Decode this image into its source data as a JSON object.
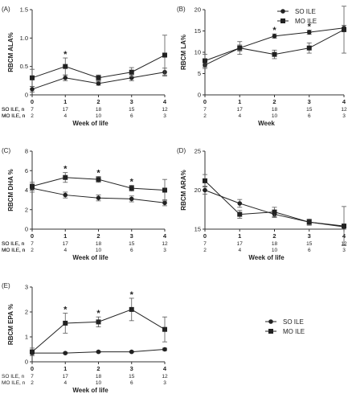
{
  "legend": [
    {
      "label": "SO ILE",
      "marker": "circle"
    },
    {
      "label": "MO ILE",
      "marker": "square"
    }
  ],
  "n_rows": {
    "so_label": "SO ILE, n",
    "mo_label": "MO ILE, n",
    "so": [
      "7",
      "17",
      "18",
      "15",
      "12"
    ],
    "mo": [
      "2",
      "4",
      "10",
      "6",
      "3"
    ]
  },
  "chart_data": [
    {
      "type": "line",
      "panel": "(A)",
      "ylabel": "RBCM ALA%",
      "xlabel": "Week of life",
      "x": [
        0,
        1,
        2,
        3,
        4
      ],
      "xticks": [
        "0",
        "1",
        "2",
        "3",
        "4"
      ],
      "ylim": [
        0,
        1.5
      ],
      "yticks": [
        "0",
        "0.5",
        "1.0",
        "1.5"
      ],
      "series": [
        {
          "name": "SO ILE",
          "marker": "circle",
          "values": [
            0.1,
            0.3,
            0.2,
            0.3,
            0.4
          ],
          "err": [
            0.05,
            0.05,
            0.03,
            0.05,
            0.07
          ]
        },
        {
          "name": "MO ILE",
          "marker": "square",
          "values": [
            0.3,
            0.5,
            0.3,
            0.4,
            0.7
          ],
          "err": [
            0.15,
            0.15,
            0.05,
            0.08,
            0.35
          ]
        }
      ],
      "stars": [
        1
      ]
    },
    {
      "type": "line",
      "panel": "(B)",
      "ylabel": "RBCM LA%",
      "xlabel": "Week",
      "x": [
        0,
        1,
        2,
        3,
        4
      ],
      "xticks": [
        "0",
        "1",
        "2",
        "3",
        "4"
      ],
      "ylim": [
        0,
        20
      ],
      "yticks": [
        "0",
        "5",
        "10",
        "15",
        "20"
      ],
      "series": [
        {
          "name": "SO ILE",
          "marker": "circle",
          "values": [
            7.0,
            11.0,
            13.8,
            14.7,
            15.7
          ],
          "err": [
            0.8,
            0.7,
            0.5,
            0.5,
            0.6
          ]
        },
        {
          "name": "MO ILE",
          "marker": "square",
          "values": [
            8.0,
            11.0,
            9.5,
            11.0,
            15.3
          ],
          "err": [
            1.5,
            1.5,
            1.0,
            1.2,
            5.5
          ]
        }
      ],
      "stars": [
        2,
        3
      ]
    },
    {
      "type": "line",
      "panel": "(C)",
      "ylabel": "RBCM DHA %",
      "xlabel": "Week of life",
      "x": [
        0,
        1,
        2,
        3,
        4
      ],
      "xticks": [
        "0",
        "1",
        "2",
        "3",
        "4"
      ],
      "ylim": [
        0,
        8
      ],
      "yticks": [
        "0",
        "2",
        "4",
        "6",
        "8"
      ],
      "series": [
        {
          "name": "SO ILE",
          "marker": "circle",
          "values": [
            4.2,
            3.5,
            3.2,
            3.1,
            2.7
          ],
          "err": [
            0.4,
            0.3,
            0.3,
            0.3,
            0.3
          ]
        },
        {
          "name": "MO ILE",
          "marker": "square",
          "values": [
            4.4,
            5.3,
            5.1,
            4.2,
            4.0
          ],
          "err": [
            0.4,
            0.5,
            0.3,
            0.3,
            1.1
          ]
        }
      ],
      "stars": [
        1,
        2,
        3
      ]
    },
    {
      "type": "line",
      "panel": "(D)",
      "ylabel": "RBCM ARA%",
      "xlabel": "Week of life",
      "x": [
        0,
        1,
        2,
        3,
        4
      ],
      "xticks": [
        "0",
        "1",
        "2",
        "3",
        "4"
      ],
      "ylim": [
        15,
        25
      ],
      "yticks": [
        "15",
        "20",
        "25"
      ],
      "series": [
        {
          "name": "SO ILE",
          "marker": "circle",
          "values": [
            20.0,
            18.3,
            16.9,
            15.9,
            15.3
          ],
          "err": [
            0.5,
            0.5,
            0.4,
            0.3,
            0.3
          ]
        },
        {
          "name": "MO ILE",
          "marker": "square",
          "values": [
            21.2,
            16.9,
            17.2,
            15.9,
            15.4
          ],
          "err": [
            0.8,
            0.5,
            0.6,
            0.4,
            2.5
          ]
        }
      ],
      "stars": []
    },
    {
      "type": "line",
      "panel": "(E)",
      "ylabel": "RBCM EPA %",
      "xlabel": "Week of life",
      "x": [
        0,
        1,
        2,
        3,
        4
      ],
      "xticks": [
        "0",
        "1",
        "2",
        "3",
        "4"
      ],
      "ylim": [
        0,
        3
      ],
      "yticks": [
        "0",
        "1",
        "2",
        "3"
      ],
      "series": [
        {
          "name": "SO ILE",
          "marker": "circle",
          "values": [
            0.35,
            0.35,
            0.4,
            0.4,
            0.5
          ],
          "err": [
            0.03,
            0.03,
            0.03,
            0.03,
            0.05
          ]
        },
        {
          "name": "MO ILE",
          "marker": "square",
          "values": [
            0.4,
            1.55,
            1.6,
            2.1,
            1.3
          ],
          "err": [
            0.15,
            0.4,
            0.2,
            0.45,
            0.5
          ]
        }
      ],
      "stars": [
        1,
        2,
        3
      ]
    }
  ]
}
